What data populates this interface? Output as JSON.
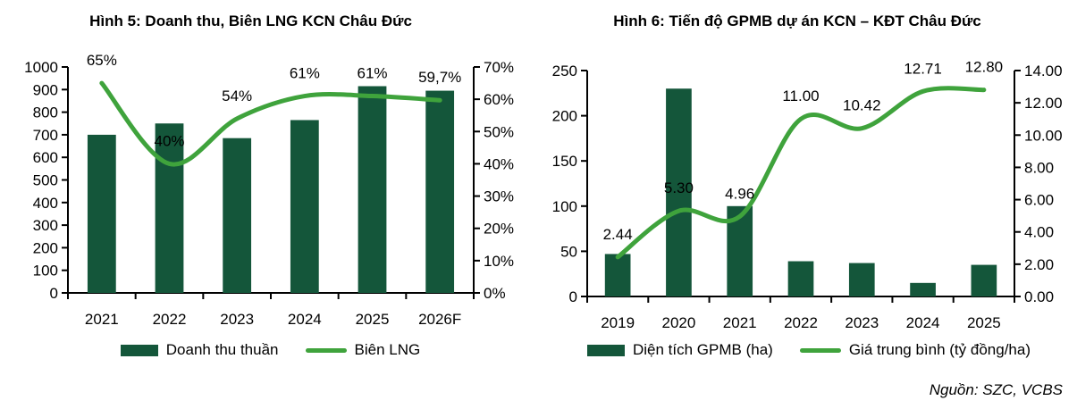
{
  "page": {
    "source": "Nguồn: SZC, VCBS"
  },
  "colors": {
    "bar": "#14563A",
    "line": "#3FA33C",
    "axis": "#000000",
    "text": "#000000"
  },
  "chart_data": [
    {
      "type": "bar",
      "subtype": "bar+line-combo",
      "title": "Hình 5: Doanh thu, Biên LNG KCN Châu Đức",
      "categories": [
        "2021",
        "2022",
        "2023",
        "2024",
        "2025",
        "2026F"
      ],
      "series": [
        {
          "name": "Doanh thu thuần",
          "type": "bar",
          "axis": "left",
          "values": [
            700,
            750,
            685,
            765,
            915,
            895
          ]
        },
        {
          "name": "Biên LNG",
          "type": "line",
          "axis": "right",
          "values": [
            65,
            40,
            54,
            61,
            61,
            59.7
          ],
          "labels": [
            "65%",
            "40%",
            "54%",
            "61%",
            "61%",
            "59,7%"
          ]
        }
      ],
      "axes": {
        "left": {
          "min": 0,
          "max": 1000,
          "ticks": [
            "0",
            "100",
            "200",
            "300",
            "400",
            "500",
            "600",
            "700",
            "800",
            "900",
            "1000"
          ]
        },
        "right": {
          "min": 0,
          "max": 70,
          "ticks": [
            "0%",
            "10%",
            "20%",
            "30%",
            "40%",
            "50%",
            "60%",
            "70%"
          ]
        }
      },
      "grid": false,
      "legend_position": "bottom"
    },
    {
      "type": "bar",
      "subtype": "bar+line-combo",
      "title": "Hình 6: Tiến độ GPMB dự án KCN – KĐT Châu Đức",
      "categories": [
        "2019",
        "2020",
        "2021",
        "2022",
        "2023",
        "2024",
        "2025"
      ],
      "series": [
        {
          "name": "Diện tích GPMB (ha)",
          "type": "bar",
          "axis": "left",
          "values": [
            47,
            230,
            100,
            39,
            37,
            15,
            35
          ]
        },
        {
          "name": "Giá trung bình (tỷ đồng/ha)",
          "type": "line",
          "axis": "right",
          "values": [
            2.44,
            5.3,
            4.96,
            11.0,
            10.42,
            12.71,
            12.8
          ],
          "labels": [
            "2.44",
            "5.30",
            "4.96",
            "11.00",
            "10.42",
            "12.71",
            "12.80"
          ]
        }
      ],
      "axes": {
        "left": {
          "min": 0,
          "max": 250,
          "ticks": [
            "0",
            "50",
            "100",
            "150",
            "200",
            "250"
          ]
        },
        "right": {
          "min": 0,
          "max": 14,
          "ticks": [
            "0.00",
            "2.00",
            "4.00",
            "6.00",
            "8.00",
            "10.00",
            "12.00",
            "14.00"
          ]
        }
      },
      "grid": false,
      "legend_position": "bottom"
    }
  ]
}
